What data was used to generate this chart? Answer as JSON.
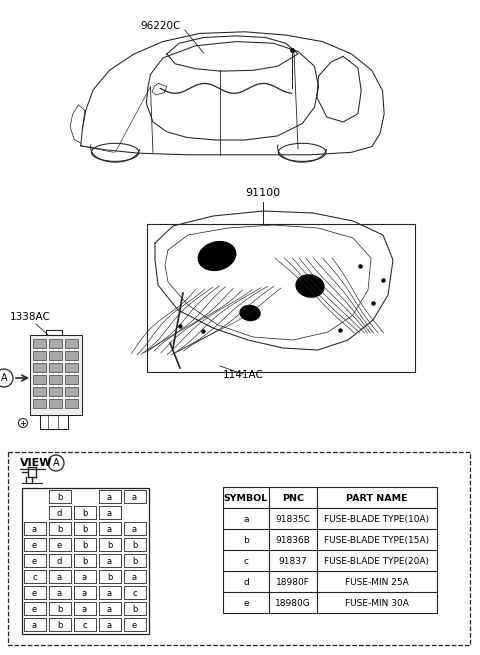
{
  "bg_color": "#ffffff",
  "label_96220C": "96220C",
  "label_91100": "91100",
  "label_1338AC": "1338AC",
  "label_1141AC": "1141AC",
  "label_view_A": "VIEW",
  "table_headers": [
    "SYMBOL",
    "PNC",
    "PART NAME"
  ],
  "table_rows": [
    [
      "a",
      "91835C",
      "FUSE-BLADE TYPE(10A)"
    ],
    [
      "b",
      "91836B",
      "FUSE-BLADE TYPE(15A)"
    ],
    [
      "c",
      "91837",
      "FUSE-BLADE TYPE(20A)"
    ],
    [
      "d",
      "18980F",
      "FUSE-MIN 25A"
    ],
    [
      "e",
      "18980G",
      "FUSE-MIN 30A"
    ]
  ],
  "fuse_grid": [
    [
      " ",
      "b",
      " ",
      "a",
      "a"
    ],
    [
      " ",
      "d",
      "b",
      "a",
      " "
    ],
    [
      "a",
      "b",
      "b",
      "a",
      "a"
    ],
    [
      "e",
      "e",
      "b",
      "b",
      "b"
    ],
    [
      "e",
      "d",
      "b",
      "a",
      "b"
    ],
    [
      "c",
      "a",
      "a",
      "b",
      "a"
    ],
    [
      "e",
      "a",
      "a",
      "a",
      "c"
    ],
    [
      "e",
      "b",
      "a",
      "a",
      "b"
    ],
    [
      "a",
      "b",
      "c",
      "a",
      "e"
    ]
  ]
}
